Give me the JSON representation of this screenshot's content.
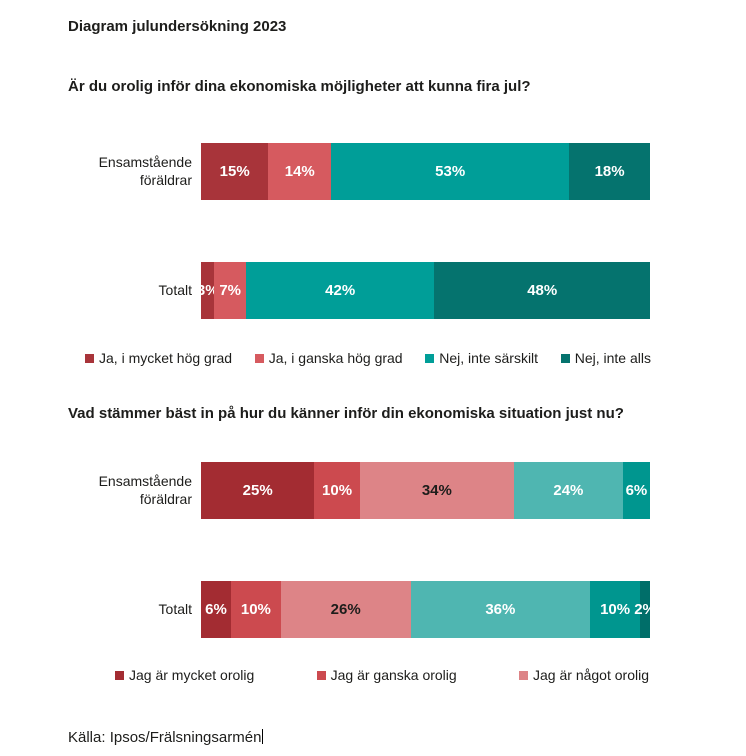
{
  "page": {
    "title": "Diagram julundersökning 2023",
    "source": "Källa: Ipsos/Frälsningsarmén"
  },
  "colors": {
    "text": "#1d1d1b",
    "background": "#ffffff",
    "dark_red": "#a8343a",
    "red": "#d65a5f",
    "pink": "#dd8487",
    "teal": "#009e98",
    "dark_teal": "#05736e",
    "light_teal": "#4fb6b1"
  },
  "chart_data": [
    {
      "type": "bar",
      "stacked": true,
      "orientation": "horizontal",
      "unit": "%",
      "title": "Är du orolig inför dina ekonomiska möjligheter att kunna fira jul?",
      "categories": [
        "Ensamstående föräldrar",
        "Totalt"
      ],
      "series": [
        {
          "name": "Ja, i mycket hög grad",
          "color": "#a8343a",
          "label_color": "#ffffff",
          "values": [
            15,
            3
          ]
        },
        {
          "name": "Ja, i ganska hög grad",
          "color": "#d65a5f",
          "label_color": "#ffffff",
          "values": [
            14,
            7
          ]
        },
        {
          "name": "Nej, inte särskilt",
          "color": "#009e98",
          "label_color": "#ffffff",
          "values": [
            53,
            42
          ]
        },
        {
          "name": "Nej, inte alls",
          "color": "#05736e",
          "label_color": "#ffffff",
          "values": [
            18,
            48
          ]
        }
      ],
      "legend": [
        "Ja, i mycket hög grad",
        "Ja, i ganska hög grad",
        "Nej, inte särskilt",
        "Nej, inte alls"
      ],
      "legend_position": "bottom",
      "axes_shown": false
    },
    {
      "type": "bar",
      "stacked": true,
      "orientation": "horizontal",
      "unit": "%",
      "title": "Vad stämmer bäst in på hur du känner inför din ekonomiska situation just nu?",
      "categories": [
        "Ensamstående föräldrar",
        "Totalt"
      ],
      "series": [
        {
          "name": "Jag är mycket orolig",
          "color": "#a32c32",
          "label_color": "#ffffff",
          "values": [
            25,
            6
          ]
        },
        {
          "name": "Jag är ganska orolig",
          "color": "#cc4a4f",
          "label_color": "#ffffff",
          "values": [
            10,
            10
          ]
        },
        {
          "name": "Jag är något orolig",
          "color": "#dd8487",
          "label_color": "#1d1d1b",
          "values": [
            34,
            26
          ]
        },
        {
          "name": "",
          "color": "#4fb6b1",
          "label_color": "#ffffff",
          "values": [
            24,
            36
          ]
        },
        {
          "name": "",
          "color": "#00968f",
          "label_color": "#ffffff",
          "values": [
            6,
            10
          ]
        },
        {
          "name": "",
          "color": "#006e69",
          "label_color": "#ffffff",
          "values": [
            0,
            2
          ]
        }
      ],
      "legend": [
        "Jag är mycket orolig",
        "Jag är ganska orolig",
        "Jag är något orolig"
      ],
      "legend_position": "bottom",
      "axes_shown": false
    }
  ]
}
